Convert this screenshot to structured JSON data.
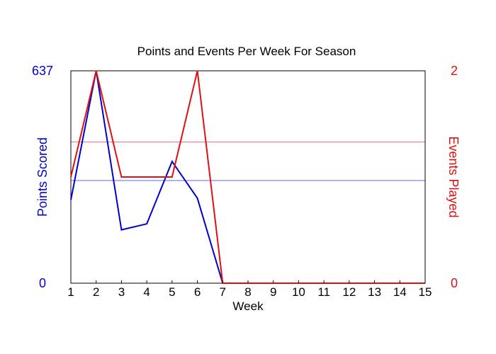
{
  "chart_data": {
    "type": "line",
    "title": "Points and Events Per Week For Season",
    "xlabel": "Week",
    "x": [
      1,
      2,
      3,
      4,
      5,
      6,
      7,
      8,
      9,
      10,
      11,
      12,
      13,
      14,
      15
    ],
    "xlim": [
      1,
      15
    ],
    "y_left": {
      "label": "Points Scored",
      "ylim": [
        0,
        637
      ],
      "tick_labels": [
        "0",
        "637"
      ],
      "color": "#0000cc"
    },
    "y_right": {
      "label": "Events Played",
      "ylim": [
        0,
        2
      ],
      "tick_labels": [
        "0",
        "2"
      ],
      "color": "#dd1111"
    },
    "series": [
      {
        "axis": "left",
        "color": "#0000cc",
        "values": [
          250,
          637,
          160,
          178,
          365,
          255,
          0,
          0,
          0,
          0,
          0,
          0,
          0,
          0,
          0
        ]
      },
      {
        "axis": "right",
        "color": "#dd1111",
        "values": [
          1,
          2,
          1,
          1,
          1,
          2,
          0,
          0,
          0,
          0,
          0,
          0,
          0,
          0,
          0
        ]
      }
    ],
    "reference_lines": [
      {
        "axis": "left",
        "value": 308,
        "color": "#6666dd"
      },
      {
        "axis": "right",
        "value": 1.33,
        "color": "#ee7777"
      }
    ],
    "grid": false,
    "legend": "none"
  }
}
